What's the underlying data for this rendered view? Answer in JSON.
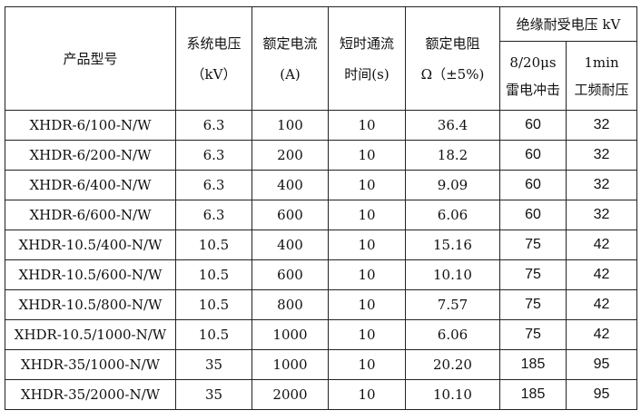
{
  "headers": {
    "model": "产品型号",
    "system_voltage": [
      "系统电压",
      "（kV）"
    ],
    "rated_current": [
      "额定电流",
      "(A)"
    ],
    "short_time": [
      "短时通流",
      "时间(s)"
    ],
    "rated_resistance": [
      "额定电阻",
      "Ω（±5%)"
    ],
    "insulation_group": "绝缘耐受电压 kV",
    "lightning": [
      "8/20μs",
      "雷电冲击"
    ],
    "power_freq": [
      "1min",
      "工频耐压"
    ]
  },
  "rows": [
    [
      "XHDR-6/100-N/W",
      "6.3",
      "100",
      "10",
      "36.4",
      "60",
      "32"
    ],
    [
      "XHDR-6/200-N/W",
      "6.3",
      "200",
      "10",
      "18.2",
      "60",
      "32"
    ],
    [
      "XHDR-6/400-N/W",
      "6.3",
      "400",
      "10",
      "9.09",
      "60",
      "32"
    ],
    [
      "XHDR-6/600-N/W",
      "6.3",
      "600",
      "10",
      "6.06",
      "60",
      "32"
    ],
    [
      "XHDR-10.5/400-N/W",
      "10.5",
      "400",
      "10",
      "15.16",
      "75",
      "42"
    ],
    [
      "XHDR-10.5/600-N/W",
      "10.5",
      "600",
      "10",
      "10.10",
      "75",
      "42"
    ],
    [
      "XHDR-10.5/800-N/W",
      "10.5",
      "800",
      "10",
      "7.57",
      "75",
      "42"
    ],
    [
      "XHDR-10.5/1000-N/W",
      "10.5",
      "1000",
      "10",
      "6.06",
      "75",
      "42"
    ],
    [
      "XHDR-35/1000-N/W",
      "35",
      "1000",
      "10",
      "20.20",
      "185",
      "95"
    ],
    [
      "XHDR-35/2000-N/W",
      "35",
      "2000",
      "10",
      "10.10",
      "185",
      "95"
    ]
  ]
}
